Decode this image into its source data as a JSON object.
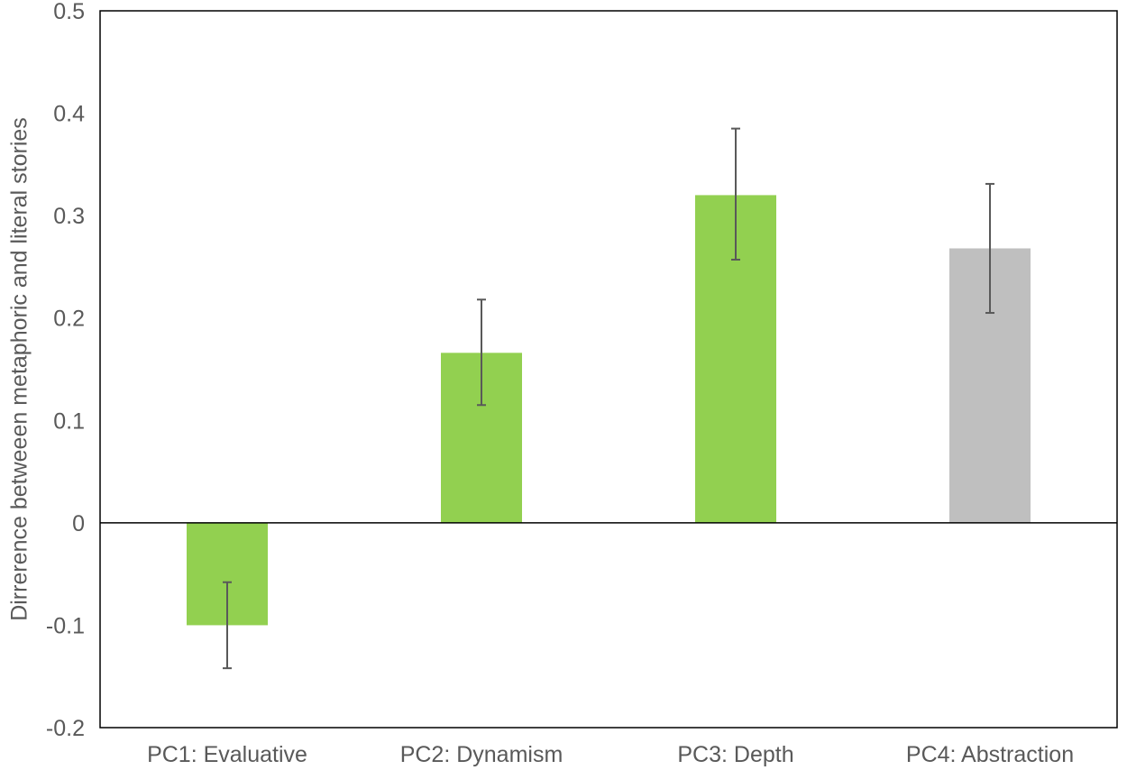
{
  "chart_data": {
    "type": "bar",
    "title": "",
    "xlabel": "",
    "ylabel": "Dirrerence betweeen metaphoric and literal stories",
    "categories": [
      "PC1: Evaluative",
      "PC2: Dynamism",
      "PC3: Depth",
      "PC4: Abstraction"
    ],
    "values": [
      -0.1,
      0.166,
      0.32,
      0.268
    ],
    "error_low": [
      -0.142,
      0.115,
      0.257,
      0.205
    ],
    "error_high": [
      -0.058,
      0.218,
      0.385,
      0.331
    ],
    "bar_colors": [
      "#92D050",
      "#92D050",
      "#92D050",
      "#BFBFBF"
    ],
    "error_bar_color": "#595959",
    "ylim": [
      -0.2,
      0.5
    ],
    "yticks": [
      0.5,
      0.4,
      0.3,
      0.2,
      0.1,
      0,
      -0.1,
      -0.2
    ],
    "ytick_labels": [
      "0.5",
      "0.4",
      "0.3",
      "0.2",
      "0.1",
      "0",
      "-0.1",
      "-0.2"
    ],
    "grid": false,
    "legend": "none"
  }
}
